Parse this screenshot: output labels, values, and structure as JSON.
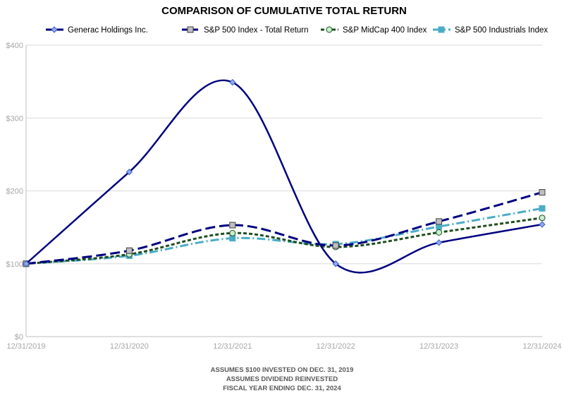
{
  "chart_data": {
    "type": "line",
    "title": "COMPARISON OF CUMULATIVE TOTAL RETURN",
    "categories": [
      "12/31/2019",
      "12/31/2020",
      "12/31/2021",
      "12/31/2022",
      "12/31/2023",
      "12/31/2024"
    ],
    "ylim": [
      0,
      400
    ],
    "yticks": [
      0,
      100,
      200,
      300,
      400
    ],
    "ytick_labels": [
      "$0",
      "$100",
      "$200",
      "$300",
      "$400"
    ],
    "grid": true,
    "legend_placement": "top",
    "series": [
      {
        "name": "Generac Holdings Inc.",
        "values": [
          100,
          226,
          349,
          100,
          129,
          154
        ],
        "color": "#000080",
        "dash": "",
        "marker": "diamond",
        "marker_fill": "#8ea9f0"
      },
      {
        "name": "S&P 500 Index - Total Return",
        "values": [
          100,
          118,
          153,
          125,
          158,
          198
        ],
        "color": "#000080",
        "dash": "14,6",
        "marker": "square",
        "marker_fill": "#bfbfbf"
      },
      {
        "name": "S&P MidCap 400 Index",
        "values": [
          100,
          113,
          142,
          123,
          143,
          163
        ],
        "color": "#1f4e1f",
        "dash": "5,3",
        "marker": "circle",
        "marker_fill": "#c6efce"
      },
      {
        "name": "S&P 500 Industrials Index",
        "values": [
          100,
          111,
          135,
          127,
          151,
          176
        ],
        "color": "#4bacc6",
        "dash": "12,4,2,4",
        "marker": "square-filled",
        "marker_fill": "#4bacc6"
      }
    ],
    "footnotes": [
      "ASSUMES $100 INVESTED ON DEC. 31, 2019",
      "ASSUMES DIVIDEND REINVESTED",
      "FISCAL YEAR ENDING DEC. 31, 2024"
    ]
  }
}
